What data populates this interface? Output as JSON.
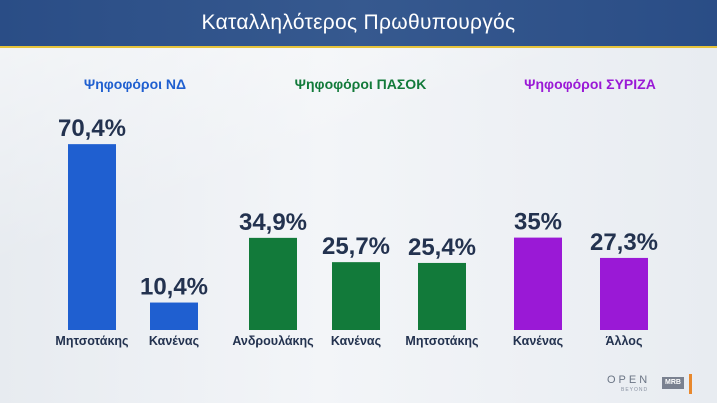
{
  "header": {
    "title": "Καταλληλότερος Πρωθυπουργός"
  },
  "groups": [
    {
      "label": "Ψηφοφόροι ΝΔ",
      "color": "#1f5fd0"
    },
    {
      "label": "Ψηφοφόροι ΠΑΣΟΚ",
      "color": "#127a3a"
    },
    {
      "label": "Ψηφοφόροι ΣΥΡΙΖΑ",
      "color": "#9a19d6"
    }
  ],
  "colors": {
    "nd": "#1f5fd0",
    "pasok": "#127a3a",
    "syriza": "#9a19d6",
    "text": "#23324f",
    "header": "#2f5290"
  },
  "chart_data": {
    "type": "bar",
    "title": "Καταλληλότερος Πρωθυπουργός",
    "ylim": [
      0,
      75
    ],
    "grid": false,
    "bars": [
      {
        "group": "Ψηφοφόροι ΝΔ",
        "category": "Μητσοτάκης",
        "value": 70.4,
        "label": "70,4%"
      },
      {
        "group": "Ψηφοφόροι ΝΔ",
        "category": "Κανένας",
        "value": 10.4,
        "label": "10,4%"
      },
      {
        "group": "Ψηφοφόροι ΠΑΣΟΚ",
        "category": "Ανδρουλάκης",
        "value": 34.9,
        "label": "34,9%"
      },
      {
        "group": "Ψηφοφόροι ΠΑΣΟΚ",
        "category": "Κανένας",
        "value": 25.7,
        "label": "25,7%"
      },
      {
        "group": "Ψηφοφόροι ΠΑΣΟΚ",
        "category": "Μητσοτάκης",
        "value": 25.4,
        "label": "25,4%"
      },
      {
        "group": "Ψηφοφόροι ΣΥΡΙΖΑ",
        "category": "Κανένας",
        "value": 35,
        "label": "35%"
      },
      {
        "group": "Ψηφοφόροι ΣΥΡΙΖΑ",
        "category": "Άλλος",
        "value": 27.3,
        "label": "27,3%"
      }
    ]
  },
  "logo": {
    "open": "OPEN",
    "beyond": "BEYOND",
    "mrb": "MRB"
  }
}
